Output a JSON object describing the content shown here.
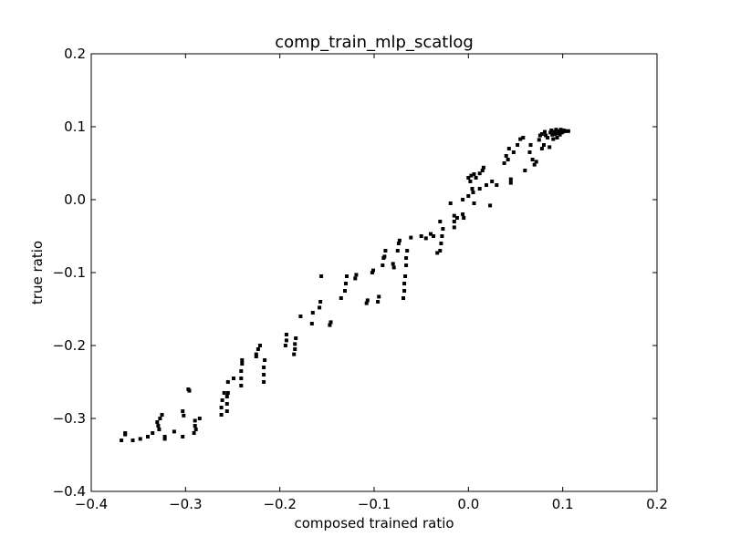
{
  "chart_data": {
    "type": "scatter",
    "title": "comp_train_mlp_scatlog",
    "xlabel": "composed trained ratio",
    "ylabel": "true ratio",
    "xlim": [
      -0.4,
      0.2
    ],
    "ylim": [
      -0.4,
      0.2
    ],
    "xticks": [
      -0.4,
      -0.3,
      -0.2,
      -0.1,
      0.0,
      0.1,
      0.2
    ],
    "yticks": [
      -0.4,
      -0.3,
      -0.2,
      -0.1,
      0.0,
      0.1,
      0.2
    ],
    "xtick_labels": [
      "−0.4",
      "−0.3",
      "−0.2",
      "−0.1",
      "0.0",
      "0.1",
      "0.2"
    ],
    "ytick_labels": [
      "−0.4",
      "−0.3",
      "−0.2",
      "−0.1",
      "0.0",
      "0.1",
      "0.2"
    ],
    "grid": false,
    "legend": "none",
    "marker": "square",
    "color": "#000000",
    "points": [
      [
        -0.368,
        -0.33
      ],
      [
        -0.364,
        -0.32
      ],
      [
        -0.364,
        -0.322
      ],
      [
        -0.356,
        -0.33
      ],
      [
        -0.348,
        -0.328
      ],
      [
        -0.34,
        -0.325
      ],
      [
        -0.335,
        -0.32
      ],
      [
        -0.33,
        -0.305
      ],
      [
        -0.329,
        -0.31
      ],
      [
        -0.328,
        -0.315
      ],
      [
        -0.327,
        -0.3
      ],
      [
        -0.325,
        -0.295
      ],
      [
        -0.322,
        -0.328
      ],
      [
        -0.322,
        -0.325
      ],
      [
        -0.312,
        -0.318
      ],
      [
        -0.303,
        -0.325
      ],
      [
        -0.303,
        -0.29
      ],
      [
        -0.302,
        -0.296
      ],
      [
        -0.297,
        -0.26
      ],
      [
        -0.296,
        -0.262
      ],
      [
        -0.291,
        -0.32
      ],
      [
        -0.29,
        -0.31
      ],
      [
        -0.29,
        -0.303
      ],
      [
        -0.289,
        -0.315
      ],
      [
        -0.285,
        -0.3
      ],
      [
        -0.262,
        -0.295
      ],
      [
        -0.262,
        -0.285
      ],
      [
        -0.261,
        -0.275
      ],
      [
        -0.259,
        -0.265
      ],
      [
        -0.256,
        -0.29
      ],
      [
        -0.256,
        -0.28
      ],
      [
        -0.256,
        -0.27
      ],
      [
        -0.255,
        -0.265
      ],
      [
        -0.255,
        -0.25
      ],
      [
        -0.249,
        -0.245
      ],
      [
        -0.241,
        -0.255
      ],
      [
        -0.241,
        -0.245
      ],
      [
        -0.241,
        -0.235
      ],
      [
        -0.24,
        -0.225
      ],
      [
        -0.24,
        -0.22
      ],
      [
        -0.225,
        -0.215
      ],
      [
        -0.225,
        -0.212
      ],
      [
        -0.223,
        -0.205
      ],
      [
        -0.221,
        -0.2
      ],
      [
        -0.217,
        -0.25
      ],
      [
        -0.217,
        -0.24
      ],
      [
        -0.217,
        -0.23
      ],
      [
        -0.216,
        -0.22
      ],
      [
        -0.194,
        -0.2
      ],
      [
        -0.193,
        -0.193
      ],
      [
        -0.193,
        -0.185
      ],
      [
        -0.185,
        -0.212
      ],
      [
        -0.184,
        -0.205
      ],
      [
        -0.184,
        -0.198
      ],
      [
        -0.183,
        -0.19
      ],
      [
        -0.178,
        -0.16
      ],
      [
        -0.166,
        -0.17
      ],
      [
        -0.165,
        -0.155
      ],
      [
        -0.158,
        -0.148
      ],
      [
        -0.157,
        -0.14
      ],
      [
        -0.156,
        -0.105
      ],
      [
        -0.147,
        -0.172
      ],
      [
        -0.146,
        -0.168
      ],
      [
        -0.135,
        -0.135
      ],
      [
        -0.131,
        -0.125
      ],
      [
        -0.13,
        -0.115
      ],
      [
        -0.129,
        -0.105
      ],
      [
        -0.12,
        -0.108
      ],
      [
        -0.119,
        -0.103
      ],
      [
        -0.108,
        -0.142
      ],
      [
        -0.107,
        -0.138
      ],
      [
        -0.102,
        -0.1
      ],
      [
        -0.101,
        -0.097
      ],
      [
        -0.096,
        -0.14
      ],
      [
        -0.095,
        -0.133
      ],
      [
        -0.091,
        -0.09
      ],
      [
        -0.09,
        -0.08
      ],
      [
        -0.089,
        -0.078
      ],
      [
        -0.088,
        -0.07
      ],
      [
        -0.08,
        -0.088
      ],
      [
        -0.079,
        -0.093
      ],
      [
        -0.075,
        -0.07
      ],
      [
        -0.074,
        -0.06
      ],
      [
        -0.073,
        -0.056
      ],
      [
        -0.069,
        -0.135
      ],
      [
        -0.068,
        -0.125
      ],
      [
        -0.068,
        -0.115
      ],
      [
        -0.067,
        -0.105
      ],
      [
        -0.066,
        -0.09
      ],
      [
        -0.066,
        -0.08
      ],
      [
        -0.065,
        -0.07
      ],
      [
        -0.061,
        -0.052
      ],
      [
        -0.05,
        -0.05
      ],
      [
        -0.045,
        -0.053
      ],
      [
        -0.04,
        -0.047
      ],
      [
        -0.037,
        -0.05
      ],
      [
        -0.033,
        -0.073
      ],
      [
        -0.03,
        -0.07
      ],
      [
        -0.03,
        -0.03
      ],
      [
        -0.029,
        -0.06
      ],
      [
        -0.028,
        -0.05
      ],
      [
        -0.027,
        -0.04
      ],
      [
        -0.019,
        -0.005
      ],
      [
        -0.015,
        -0.038
      ],
      [
        -0.015,
        -0.03
      ],
      [
        -0.015,
        -0.022
      ],
      [
        -0.012,
        -0.025
      ],
      [
        -0.006,
        -0.02
      ],
      [
        -0.006,
        0.0
      ],
      [
        -0.005,
        -0.025
      ],
      [
        0.0,
        0.005
      ],
      [
        0.0,
        0.03
      ],
      [
        0.002,
        0.025
      ],
      [
        0.003,
        0.033
      ],
      [
        0.004,
        0.015
      ],
      [
        0.005,
        0.01
      ],
      [
        0.006,
        -0.005
      ],
      [
        0.006,
        0.035
      ],
      [
        0.008,
        0.03
      ],
      [
        0.012,
        0.015
      ],
      [
        0.012,
        0.036
      ],
      [
        0.015,
        0.04
      ],
      [
        0.016,
        0.044
      ],
      [
        0.019,
        0.02
      ],
      [
        0.023,
        -0.008
      ],
      [
        0.025,
        0.025
      ],
      [
        0.03,
        0.02
      ],
      [
        0.038,
        0.05
      ],
      [
        0.04,
        0.06
      ],
      [
        0.042,
        0.055
      ],
      [
        0.043,
        0.07
      ],
      [
        0.045,
        0.023
      ],
      [
        0.045,
        0.028
      ],
      [
        0.048,
        0.065
      ],
      [
        0.052,
        0.075
      ],
      [
        0.055,
        0.083
      ],
      [
        0.058,
        0.085
      ],
      [
        0.06,
        0.04
      ],
      [
        0.065,
        0.065
      ],
      [
        0.066,
        0.075
      ],
      [
        0.068,
        0.055
      ],
      [
        0.07,
        0.048
      ],
      [
        0.072,
        0.052
      ],
      [
        0.075,
        0.082
      ],
      [
        0.076,
        0.088
      ],
      [
        0.078,
        0.09
      ],
      [
        0.078,
        0.07
      ],
      [
        0.08,
        0.075
      ],
      [
        0.081,
        0.093
      ],
      [
        0.082,
        0.088
      ],
      [
        0.084,
        0.085
      ],
      [
        0.086,
        0.072
      ],
      [
        0.087,
        0.092
      ],
      [
        0.088,
        0.095
      ],
      [
        0.089,
        0.089
      ],
      [
        0.09,
        0.083
      ],
      [
        0.091,
        0.093
      ],
      [
        0.092,
        0.09
      ],
      [
        0.093,
        0.096
      ],
      [
        0.094,
        0.085
      ],
      [
        0.095,
        0.091
      ],
      [
        0.096,
        0.094
      ],
      [
        0.097,
        0.089
      ],
      [
        0.098,
        0.096
      ],
      [
        0.099,
        0.092
      ],
      [
        0.1,
        0.093
      ],
      [
        0.101,
        0.095
      ],
      [
        0.102,
        0.094
      ],
      [
        0.104,
        0.094
      ],
      [
        0.106,
        0.094
      ]
    ]
  }
}
